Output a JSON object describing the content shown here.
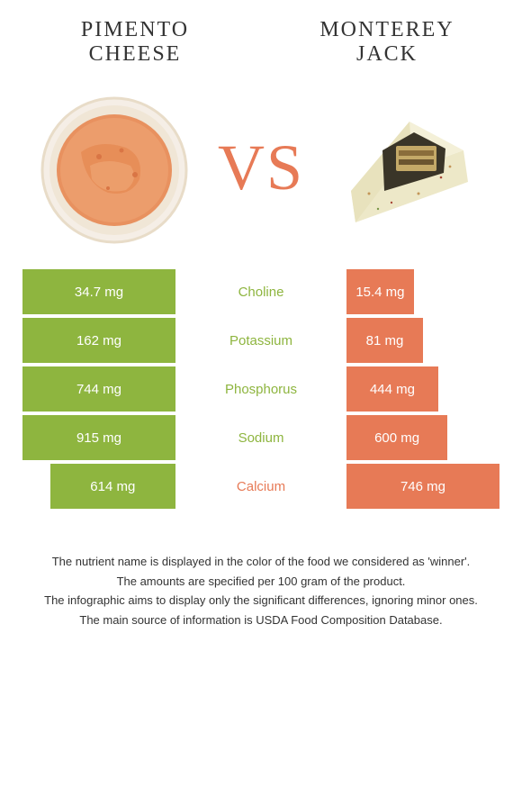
{
  "left_food": {
    "title": "Pimento cheese"
  },
  "right_food": {
    "title": "Monterey Jack"
  },
  "vs_label": "VS",
  "colors": {
    "left": "#8eb53f",
    "right": "#e77a56",
    "vs": "#e77a56",
    "text": "#333333",
    "cell_text": "#ffffff"
  },
  "table": {
    "left_full_width": 170,
    "right_full_width": 170,
    "rows": [
      {
        "nutrient": "Choline",
        "left_val": "34.7 mg",
        "right_val": "15.4 mg",
        "winner": "left",
        "left_w": 1.0,
        "right_w": 0.44
      },
      {
        "nutrient": "Potassium",
        "left_val": "162 mg",
        "right_val": "81 mg",
        "winner": "left",
        "left_w": 1.0,
        "right_w": 0.5
      },
      {
        "nutrient": "Phosphorus",
        "left_val": "744 mg",
        "right_val": "444 mg",
        "winner": "left",
        "left_w": 1.0,
        "right_w": 0.6
      },
      {
        "nutrient": "Sodium",
        "left_val": "915 mg",
        "right_val": "600 mg",
        "winner": "left",
        "left_w": 1.0,
        "right_w": 0.66
      },
      {
        "nutrient": "Calcium",
        "left_val": "614 mg",
        "right_val": "746 mg",
        "winner": "right",
        "left_w": 0.82,
        "right_w": 1.0
      }
    ]
  },
  "footer": {
    "line1": "The nutrient name is displayed in the color of the food we considered as 'winner'.",
    "line2": "The amounts are specified per 100 gram of the product.",
    "line3": "The infographic aims to display only the significant differences, ignoring minor ones.",
    "line4": "The main source of information is USDA Food Composition Database."
  }
}
